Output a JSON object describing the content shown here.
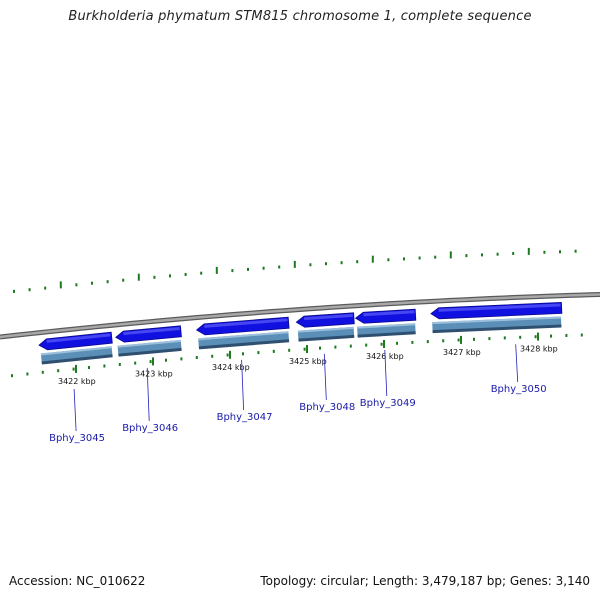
{
  "title": "Burkholderia phymatum STM815 chromosome 1, complete sequence",
  "footer": {
    "accession": "Accession: NC_010622",
    "summary": "Topology: circular; Length: 3,479,187 bp; Genes: 3,140"
  },
  "colors": {
    "backbone": "#8a8a8a",
    "gene_arrow": "#1010e0",
    "cds_bar": "#5b8fb8",
    "tick": "#1e7a1e",
    "label_line": "#2222bb",
    "label_text": "#1a1aaa"
  },
  "scale": {
    "ticks": [
      {
        "label": "3422 kbp",
        "kbp": 3422
      },
      {
        "label": "3423 kbp",
        "kbp": 3423
      },
      {
        "label": "3424 kbp",
        "kbp": 3424
      },
      {
        "label": "3425 kbp",
        "kbp": 3425
      },
      {
        "label": "3426 kbp",
        "kbp": 3426
      },
      {
        "label": "3427 kbp",
        "kbp": 3427
      },
      {
        "label": "3428 kbp",
        "kbp": 3428
      }
    ]
  },
  "genes": [
    {
      "name": "Bphy_3045",
      "start_kbp": 3421.5,
      "end_kbp": 3422.45,
      "strand": "-"
    },
    {
      "name": "Bphy_3046",
      "start_kbp": 3422.5,
      "end_kbp": 3423.35,
      "strand": "-"
    },
    {
      "name": "Bphy_3047",
      "start_kbp": 3423.55,
      "end_kbp": 3424.75,
      "strand": "-"
    },
    {
      "name": "Bphy_3048",
      "start_kbp": 3424.85,
      "end_kbp": 3425.6,
      "strand": "-"
    },
    {
      "name": "Bphy_3049",
      "start_kbp": 3425.62,
      "end_kbp": 3426.4,
      "strand": "-"
    },
    {
      "name": "Bphy_3050",
      "start_kbp": 3426.6,
      "end_kbp": 3428.3,
      "strand": "-"
    }
  ]
}
